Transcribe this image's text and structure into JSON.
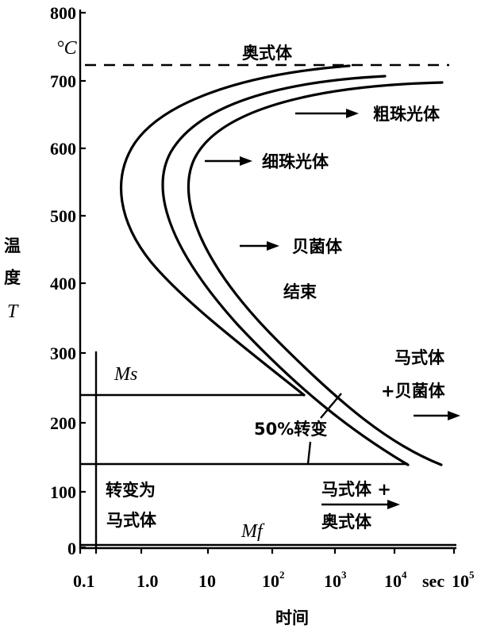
{
  "diagram": {
    "y_axis": {
      "title_chars": [
        "温",
        "度"
      ],
      "symbol": "T",
      "unit": "°C",
      "ticks": [
        "800",
        "700",
        "600",
        "500",
        "400",
        "300",
        "200",
        "100",
        "0"
      ]
    },
    "x_axis": {
      "title": "时间",
      "unit": "sec",
      "ticks": [
        {
          "base": "0.1",
          "exp": ""
        },
        {
          "base": "1.0",
          "exp": ""
        },
        {
          "base": "10",
          "exp": ""
        },
        {
          "base": "10",
          "exp": "2"
        },
        {
          "base": "10",
          "exp": "3"
        },
        {
          "base": "10",
          "exp": "4"
        },
        {
          "base": "10",
          "exp": "5"
        }
      ]
    },
    "regions": {
      "austenite": "奥式体",
      "coarse_pearlite": "粗珠光体",
      "fine_pearlite": "细珠光体",
      "bainite": "贝菌体",
      "finish": "结束",
      "martensite_bainite_line1": "马式体",
      "martensite_bainite_line2": "+贝菌体",
      "fifty_percent": "50%转变",
      "transform_to_line1": "转变为",
      "transform_to_line2": "马式体",
      "martensite_austenite_line1": "马式体 +",
      "martensite_austenite_line2": "奥式体"
    },
    "temperature_lines": {
      "ms": "Ms",
      "mf": "Mf"
    }
  }
}
